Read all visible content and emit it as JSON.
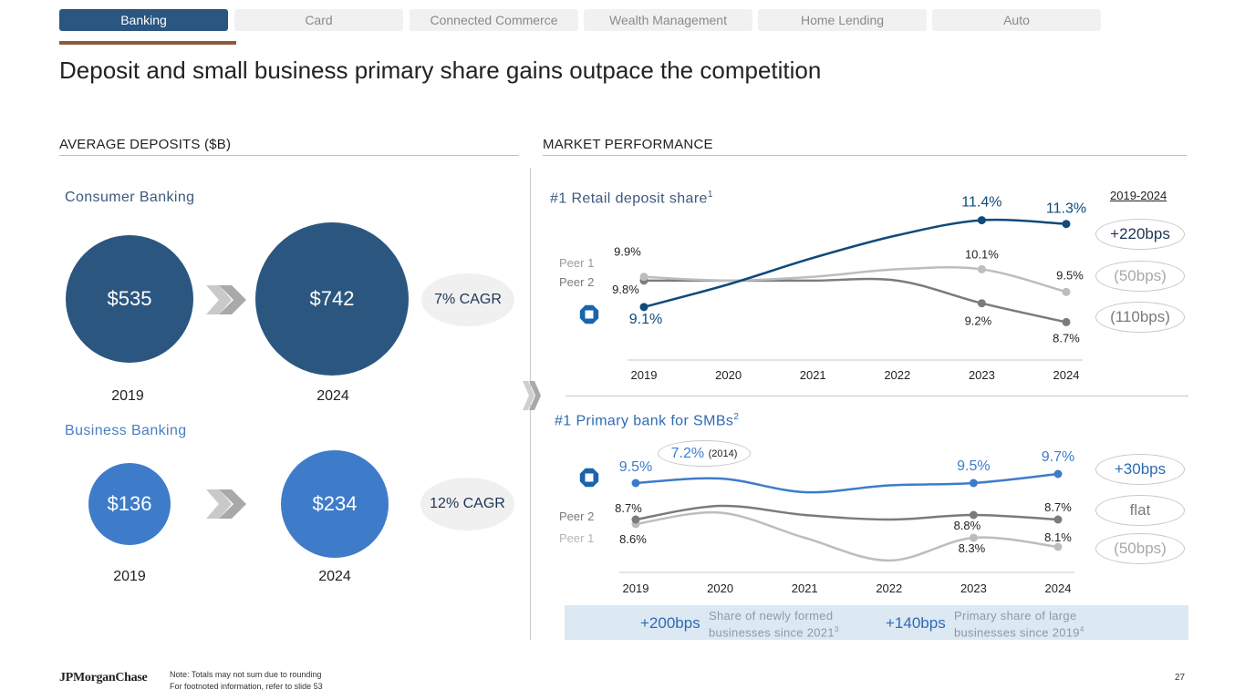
{
  "tabs": [
    {
      "label": "Banking",
      "active": true
    },
    {
      "label": "Card",
      "active": false
    },
    {
      "label": "Connected Commerce",
      "active": false
    },
    {
      "label": "Wealth Management",
      "active": false
    },
    {
      "label": "Home Lending",
      "active": false
    },
    {
      "label": "Auto",
      "active": false
    }
  ],
  "page_title": "Deposit and small business primary share gains outpace the competition",
  "left": {
    "section_title": "AVERAGE DEPOSITS ($B)",
    "consumer": {
      "title": "Consumer Banking",
      "value_2019": "$535",
      "value_2024": "$742",
      "year_2019": "2019",
      "year_2024": "2024",
      "cagr": "7% CAGR"
    },
    "business": {
      "title": "Business Banking",
      "value_2019": "$136",
      "value_2024": "$234",
      "year_2019": "2019",
      "year_2024": "2024",
      "cagr": "12% CAGR"
    }
  },
  "right": {
    "section_title": "MARKET PERFORMANCE",
    "range_label": "2019-2024",
    "retail_pills": [
      "+220bps",
      "(50bps)",
      "(110bps)"
    ],
    "smb_pills": [
      "+30bps",
      "flat",
      "(50bps)"
    ],
    "smb_note_value": "7.2%",
    "smb_note_year": "(2014)",
    "callouts": [
      {
        "value": "+200bps",
        "text_line1": "Share of newly formed",
        "text_line2": "businesses since 2021",
        "footnote": "3"
      },
      {
        "value": "+140bps",
        "text_line1": "Primary share of large",
        "text_line2": "businesses since 2019",
        "footnote": "4"
      }
    ]
  },
  "colors": {
    "tab_active": "#2b5680",
    "accent_underline": "#8b5a3c",
    "consumer_blue": "#2b5680",
    "business_blue": "#3e7cc9",
    "jpm_line": "#0f4a7a",
    "smb_line": "#3e7cc9",
    "peer_dark": "#7b7b7b",
    "peer_light": "#bdbdbd"
  },
  "chart_data": [
    {
      "type": "line",
      "title": "#1 Retail deposit share",
      "title_footnote": "1",
      "x": [
        "2019",
        "2020",
        "2021",
        "2022",
        "2023",
        "2024"
      ],
      "series": [
        {
          "name": "JPMorganChase",
          "values": [
            9.1,
            9.7,
            10.4,
            11.0,
            11.4,
            11.3
          ],
          "labeled_points": {
            "2019": "9.1%",
            "2023": "11.4%",
            "2024": "11.3%"
          }
        },
        {
          "name": "Peer 1",
          "values": [
            9.9,
            9.8,
            9.9,
            10.1,
            10.1,
            9.5
          ],
          "labeled_points": {
            "2019": "9.9%",
            "2023": "10.1%",
            "2024": "9.5%"
          }
        },
        {
          "name": "Peer 2",
          "values": [
            9.8,
            9.8,
            9.8,
            9.8,
            9.2,
            8.7
          ],
          "labeled_points": {
            "2019": "9.8%",
            "2023": "9.2%",
            "2024": "8.7%"
          }
        }
      ],
      "legend_labels": [
        "Peer 1",
        "Peer 2"
      ],
      "change_2019_2024": [
        "+220bps",
        "(50bps)",
        "(110bps)"
      ],
      "ylim": [
        8.3,
        11.8
      ]
    },
    {
      "type": "line",
      "title": "#1 Primary bank for SMBs",
      "title_footnote": "2",
      "x": [
        "2019",
        "2020",
        "2021",
        "2022",
        "2023",
        "2024"
      ],
      "series": [
        {
          "name": "JPMorganChase",
          "values": [
            9.5,
            9.6,
            9.3,
            9.45,
            9.5,
            9.7
          ],
          "labeled_points": {
            "2019": "9.5%",
            "2023": "9.5%",
            "2024": "9.7%"
          }
        },
        {
          "name": "Peer 2",
          "values": [
            8.7,
            9.0,
            8.8,
            8.7,
            8.8,
            8.7
          ],
          "labeled_points": {
            "2019": "8.7%",
            "2023": "8.8%",
            "2024": "8.7%"
          }
        },
        {
          "name": "Peer 1",
          "values": [
            8.6,
            8.85,
            8.3,
            7.8,
            8.3,
            8.1
          ],
          "labeled_points": {
            "2019": "8.6%",
            "2023": "8.3%",
            "2024": "8.1%"
          }
        }
      ],
      "legend_labels": [
        "Peer 2",
        "Peer 1"
      ],
      "annotation": "7.2% (2014)",
      "change_2019_2024": [
        "+30bps",
        "flat",
        "(50bps)"
      ],
      "ylim": [
        7.6,
        10.1
      ]
    }
  ],
  "footer": {
    "logo": "JPMorganChase",
    "note_line1": "Note: Totals may not sum due to rounding",
    "note_line2": "For footnoted information, refer to slide 53",
    "page_number": "27"
  }
}
